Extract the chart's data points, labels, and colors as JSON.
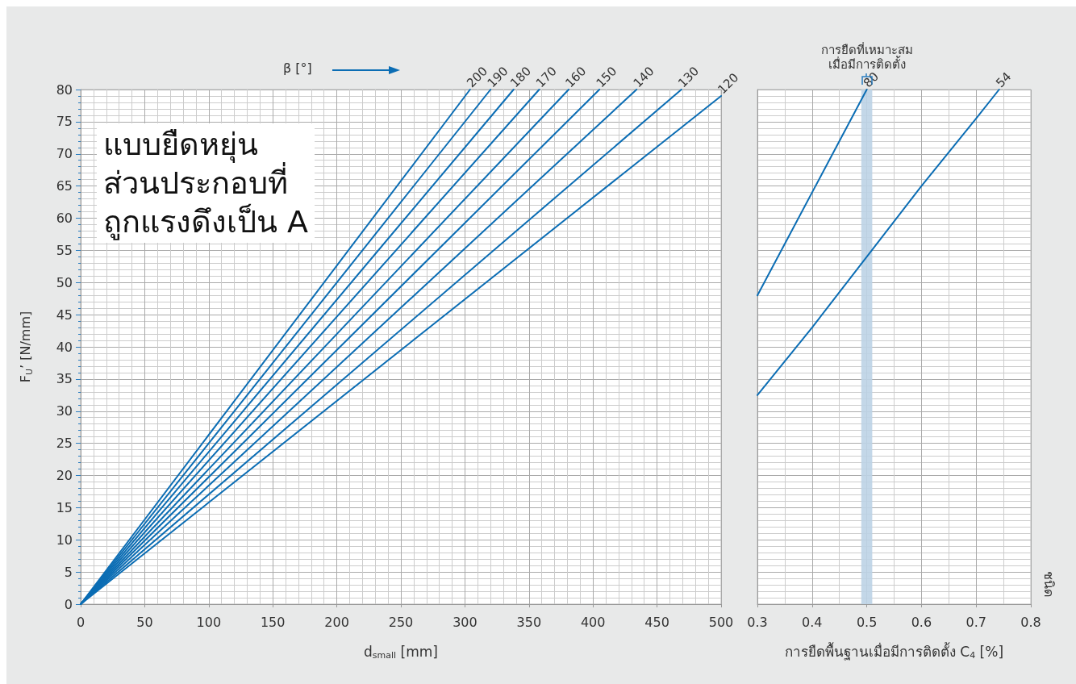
{
  "chart_data": [
    {
      "type": "line",
      "xlabel": "d$_{small}$ [mm]",
      "ylabel": "F$_{U}$’ [N/mm]",
      "legend_title": "β [°]",
      "annotations": [
        "แบบยืดหยุ่น\nส่วนประกอบที่\nถูกแรงดึงเป็น A"
      ],
      "xlim": [
        0,
        500
      ],
      "xticks": [
        0,
        50,
        100,
        150,
        200,
        250,
        300,
        350,
        400,
        450,
        500
      ],
      "ylim": [
        0,
        80
      ],
      "yticks": [
        0,
        5,
        10,
        15,
        20,
        25,
        30,
        35,
        40,
        45,
        50,
        55,
        60,
        65,
        70,
        75,
        80
      ],
      "grid": true,
      "legend": false,
      "marker": "none",
      "line_style": "solid",
      "series": [
        {
          "name": "200",
          "color": "#0b6db4",
          "x": [
            0,
            304
          ],
          "values": [
            0,
            80
          ]
        },
        {
          "name": "190",
          "color": "#0b6db4",
          "x": [
            0,
            320
          ],
          "values": [
            0,
            80
          ]
        },
        {
          "name": "180",
          "color": "#0b6db4",
          "x": [
            0,
            338
          ],
          "values": [
            0,
            80
          ]
        },
        {
          "name": "170",
          "color": "#0b6db4",
          "x": [
            0,
            358
          ],
          "values": [
            0,
            80
          ]
        },
        {
          "name": "160",
          "color": "#0b6db4",
          "x": [
            0,
            381
          ],
          "values": [
            0,
            80
          ]
        },
        {
          "name": "150",
          "color": "#0b6db4",
          "x": [
            0,
            405
          ],
          "values": [
            0,
            80
          ]
        },
        {
          "name": "140",
          "color": "#0b6db4",
          "x": [
            0,
            434
          ],
          "values": [
            0,
            80
          ]
        },
        {
          "name": "130",
          "color": "#0b6db4",
          "x": [
            0,
            469
          ],
          "values": [
            0,
            80
          ]
        },
        {
          "name": "120",
          "color": "#0b6db4",
          "x": [
            0,
            500
          ],
          "values": [
            0,
            79
          ]
        }
      ]
    },
    {
      "type": "line",
      "xlabel": "การยืดพื้นฐานเมื่อมีการติดตั้ง C$_{4}$ [%]",
      "ylabel": "ชนิด",
      "xlim": [
        0.3,
        0.8
      ],
      "xticks": [
        0.3,
        0.4,
        0.5,
        0.6,
        0.7,
        0.8
      ],
      "ylim": [
        0,
        80
      ],
      "yticks": [
        0,
        5,
        10,
        15,
        20,
        25,
        30,
        35,
        40,
        45,
        50,
        55,
        60,
        65,
        70,
        75,
        80
      ],
      "tick_labels": "x",
      "grid": true,
      "legend": false,
      "marker": "none",
      "line_style": "solid",
      "bands": [
        {
          "axis": "x",
          "from": 0.49,
          "to": 0.51,
          "label": "การยืดที่เหมาะสม\nเมื่อมีการติดตั้ง",
          "color": "#bcd3e6"
        }
      ],
      "series": [
        {
          "name": "80",
          "color": "#0b6db4",
          "x": [
            0.3,
            0.4,
            0.5
          ],
          "values": [
            48,
            64,
            80
          ]
        },
        {
          "name": "54",
          "color": "#0b6db4",
          "x": [
            0.3,
            0.4,
            0.5,
            0.6,
            0.7,
            0.742
          ],
          "values": [
            32.5,
            43,
            54,
            65,
            75.5,
            80
          ]
        }
      ]
    }
  ]
}
